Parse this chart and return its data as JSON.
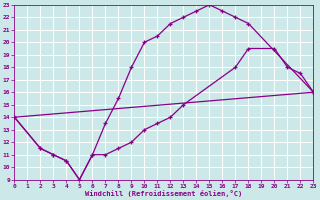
{
  "xlabel": "Windchill (Refroidissement éolien,°C)",
  "bg_color": "#cce8e8",
  "grid_color": "#ffffff",
  "line_color": "#880088",
  "xlim": [
    0,
    23
  ],
  "ylim": [
    9,
    23
  ],
  "xticks": [
    0,
    1,
    2,
    3,
    4,
    5,
    6,
    7,
    8,
    9,
    10,
    11,
    12,
    13,
    14,
    15,
    16,
    17,
    18,
    19,
    20,
    21,
    22,
    23
  ],
  "yticks": [
    9,
    10,
    11,
    12,
    13,
    14,
    15,
    16,
    17,
    18,
    19,
    20,
    21,
    22,
    23
  ],
  "curves": [
    {
      "x": [
        0,
        2,
        3,
        4,
        5,
        6,
        7,
        8,
        9,
        10,
        11,
        12,
        13,
        14,
        15,
        16,
        17,
        18,
        23
      ],
      "y": [
        14,
        11.5,
        11,
        10.5,
        9,
        11,
        13.5,
        15.5,
        18,
        20,
        20.5,
        21.5,
        22,
        22.5,
        23,
        22.5,
        22,
        21.5,
        16
      ]
    },
    {
      "x": [
        0,
        2,
        3,
        4,
        5,
        6,
        7,
        8,
        9,
        10,
        11,
        12,
        13,
        17,
        18,
        20,
        21,
        22,
        23
      ],
      "y": [
        14,
        11.5,
        11,
        10.5,
        9,
        11,
        11,
        11.5,
        12,
        13,
        13.5,
        14,
        15,
        18,
        19.5,
        19.5,
        18,
        17.5,
        16
      ]
    },
    {
      "x": [
        0,
        23
      ],
      "y": [
        14,
        16
      ]
    }
  ]
}
